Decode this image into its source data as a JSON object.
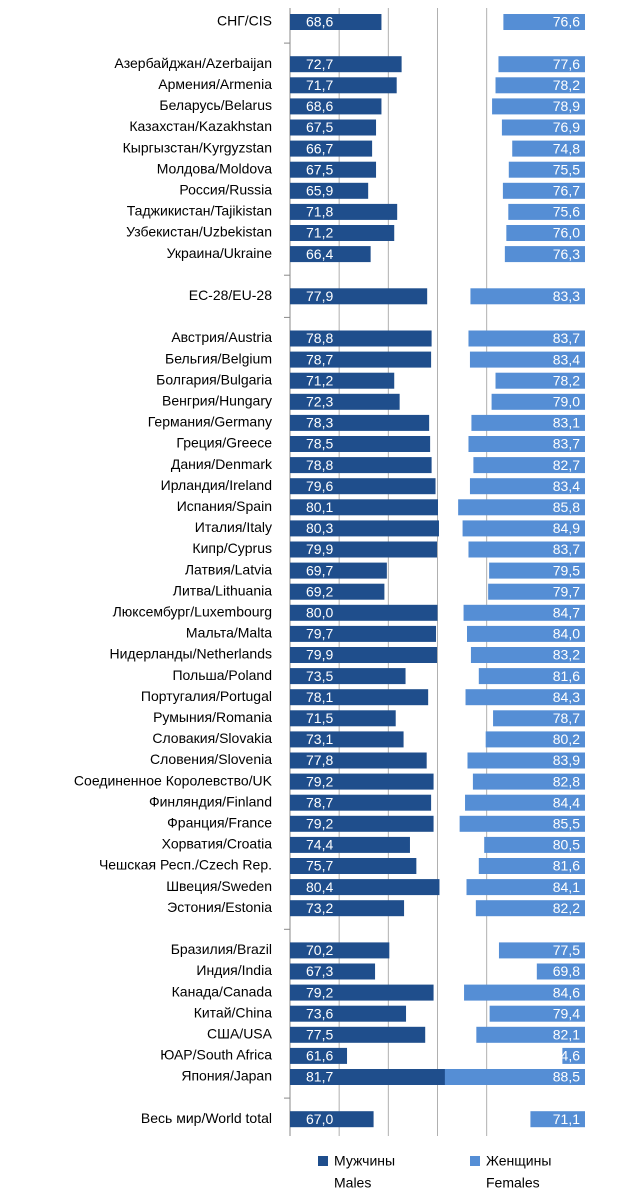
{
  "chart_data": {
    "type": "bar",
    "orientation": "horizontal",
    "categories": [
      "СНГ/CIS",
      null,
      "Азербайджан/Azerbaijan",
      "Армения/Armenia",
      "Беларусь/Belarus",
      "Казахстан/Kazakhstan",
      "Кыргызстан/Kyrgyzstan",
      "Молдова/Moldova",
      "Россия/Russia",
      "Таджикистан/Tajikistan",
      "Узбекистан/Uzbekistan",
      "Украина/Ukraine",
      null,
      "ЕС-28/EU-28",
      null,
      "Австрия/Austria",
      "Бельгия/Belgium",
      "Болгария/Bulgaria",
      "Венгрия/Hungary",
      "Германия/Germany",
      "Греция/Greece",
      "Дания/Denmark",
      "Ирландия/Ireland",
      "Испания/Spain",
      "Италия/Italy",
      "Кипр/Cyprus",
      "Латвия/Latvia",
      "Литва/Lithuania",
      "Люксембург/Luxembourg",
      "Мальта/Malta",
      "Нидерланды/Netherlands",
      "Польша/Poland",
      "Португалия/Portugal",
      "Румыния/Romania",
      "Словакия/Slovakia",
      "Словения/Slovenia",
      "Соединенное Королевство/UK",
      "Финляндия/Finland",
      "Франция/France",
      "Хорватия/Croatia",
      "Чешская Респ./Czech Rep.",
      "Швеция/Sweden",
      "Эстония/Estonia",
      null,
      "Бразилия/Brazil",
      "Индия/India",
      "Канада/Canada",
      "Китай/China",
      "США/USA",
      "ЮАР/South Africa",
      "Япония/Japan",
      null,
      "Весь мир/World total"
    ],
    "series": [
      {
        "name": "Мужчины",
        "name_en": "Males",
        "color": "#1f4e8c",
        "axis": "x",
        "values": [
          68.6,
          null,
          72.7,
          71.7,
          68.6,
          67.5,
          66.7,
          67.5,
          65.9,
          71.8,
          71.2,
          66.4,
          null,
          77.9,
          null,
          78.8,
          78.7,
          71.2,
          72.3,
          78.3,
          78.5,
          78.8,
          79.6,
          80.1,
          80.3,
          79.9,
          69.7,
          69.2,
          80.0,
          79.7,
          79.9,
          73.5,
          78.1,
          71.5,
          73.1,
          77.8,
          79.2,
          78.7,
          79.2,
          74.4,
          75.7,
          80.4,
          73.2,
          null,
          70.2,
          67.3,
          79.2,
          73.6,
          77.5,
          61.6,
          81.7,
          null,
          67.0
        ],
        "value_labels": [
          "68,6",
          null,
          "72,7",
          "71,7",
          "68,6",
          "67,5",
          "66,7",
          "67,5",
          "65,9",
          "71,8",
          "71,2",
          "66,4",
          null,
          "77,9",
          null,
          "78,8",
          "78,7",
          "71,2",
          "72,3",
          "78,3",
          "78,5",
          "78,8",
          "79,6",
          "80,1",
          "80,3",
          "79,9",
          "69,7",
          "69,2",
          "80,0",
          "79,7",
          "79,9",
          "73,5",
          "78,1",
          "71,5",
          "73,1",
          "77,8",
          "79,2",
          "78,7",
          "79,2",
          "74,4",
          "75,7",
          "80,4",
          "73,2",
          null,
          "70,2",
          "67,3",
          "79,2",
          "73,6",
          "77,5",
          "61,6",
          "81,7",
          null,
          "67,0"
        ]
      },
      {
        "name": "Женщины",
        "name_en": "Females",
        "color": "#558ed5",
        "axis": "x2",
        "values": [
          76.6,
          null,
          77.6,
          78.2,
          78.9,
          76.9,
          74.8,
          75.5,
          76.7,
          75.6,
          76.0,
          76.3,
          null,
          83.3,
          null,
          83.7,
          83.4,
          78.2,
          79.0,
          83.1,
          83.7,
          82.7,
          83.4,
          85.8,
          84.9,
          83.7,
          79.5,
          79.7,
          84.7,
          84.0,
          83.2,
          81.6,
          84.3,
          78.7,
          80.2,
          83.9,
          82.8,
          84.4,
          85.5,
          80.5,
          81.6,
          84.1,
          82.2,
          null,
          77.5,
          69.8,
          84.6,
          79.4,
          82.1,
          64.6,
          88.5,
          null,
          71.1
        ],
        "value_labels": [
          "76,6",
          null,
          "77,6",
          "78,2",
          "78,9",
          "76,9",
          "74,8",
          "75,5",
          "76,7",
          "75,6",
          "76,0",
          "76,3",
          null,
          "83,3",
          null,
          "83,7",
          "83,4",
          "78,2",
          "79,0",
          "83,1",
          "83,7",
          "82,7",
          "83,4",
          "85,8",
          "84,9",
          "83,7",
          "79,5",
          "79,7",
          "84,7",
          "84,0",
          "83,2",
          "81,6",
          "84,3",
          "78,7",
          "80,2",
          "83,9",
          "82,8",
          "84,4",
          "85,5",
          "80,5",
          "81,6",
          "84,1",
          "82,2",
          null,
          "77,5",
          "69,8",
          "84,6",
          "79,4",
          "82,1",
          "64,6",
          "88,5",
          null,
          "71,1"
        ]
      }
    ],
    "xlim": [
      50,
      110
    ],
    "xticks": [
      60,
      70,
      80,
      90
    ],
    "x2lim": [
      60,
      120
    ],
    "grid": true,
    "legend": "bottom"
  }
}
